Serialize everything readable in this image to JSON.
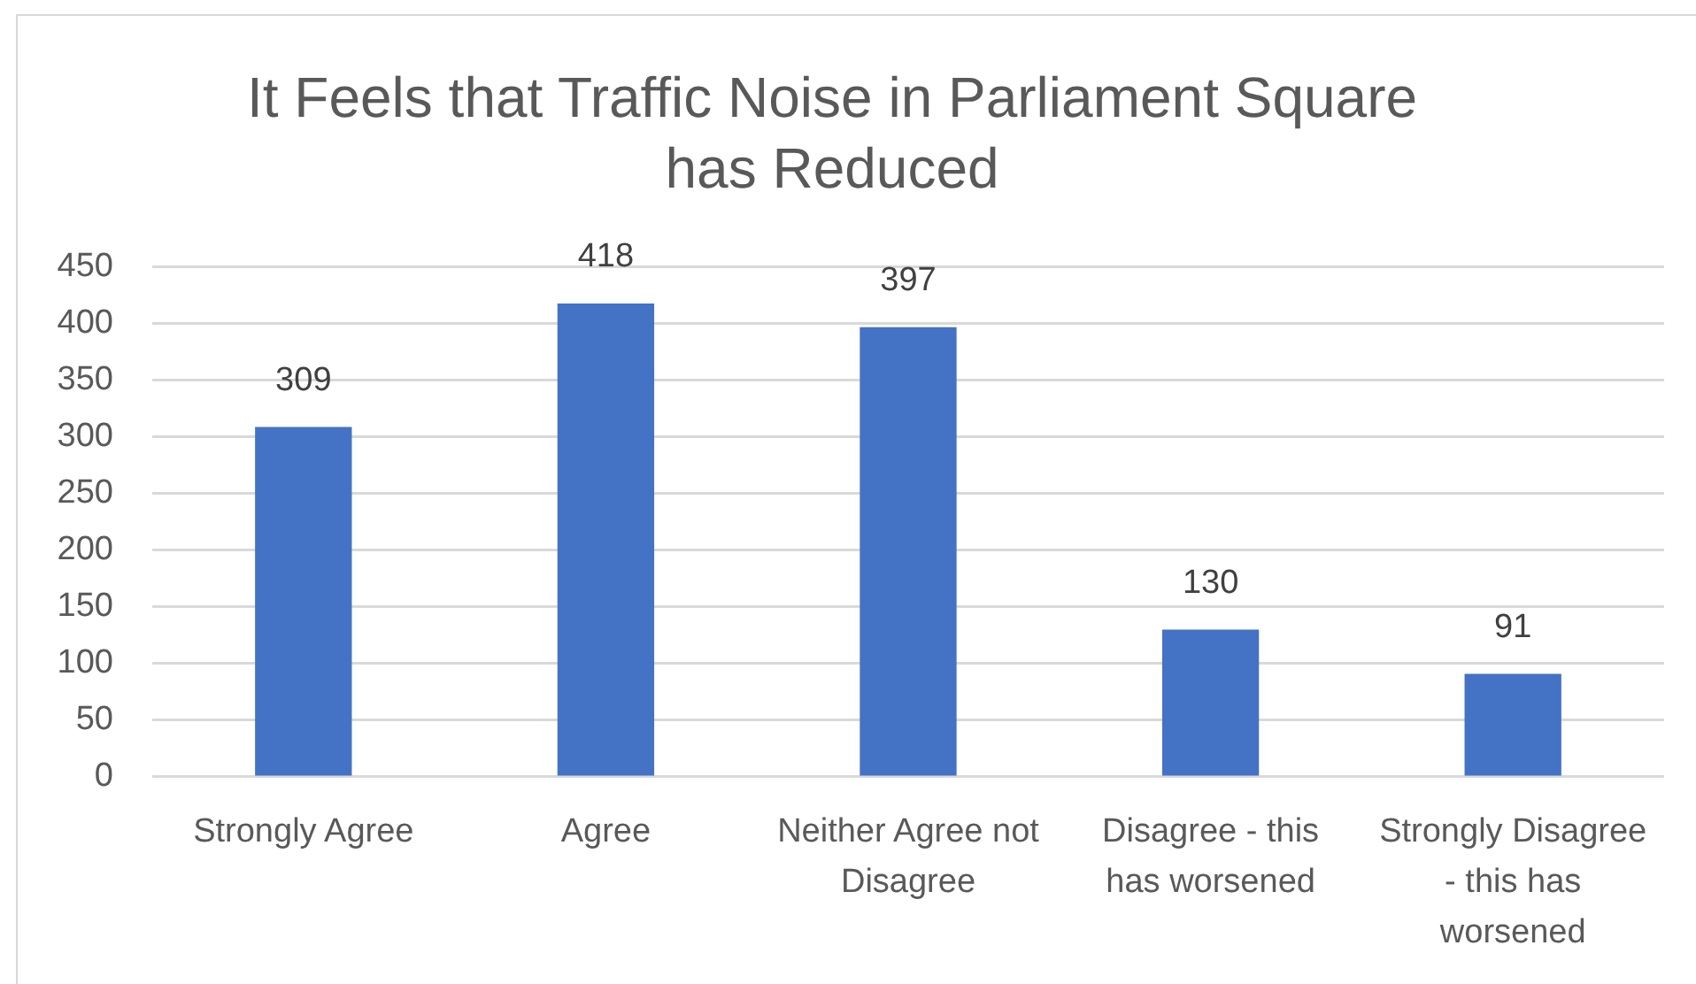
{
  "chart_data": {
    "type": "bar",
    "title": "It Feels that Traffic Noise in Parliament Square has Reduced",
    "categories": [
      "Strongly Agree",
      "Agree",
      "Neither Agree not Disagree",
      "Disagree - this has worsened",
      "Strongly Disagree - this has worsened"
    ],
    "values": [
      309,
      418,
      397,
      130,
      91
    ],
    "color": "#4472c4",
    "ylim": [
      0,
      450
    ],
    "yticks": [
      0,
      50,
      100,
      150,
      200,
      250,
      300,
      350,
      400,
      450
    ],
    "grid": "y",
    "data_labels": true
  }
}
